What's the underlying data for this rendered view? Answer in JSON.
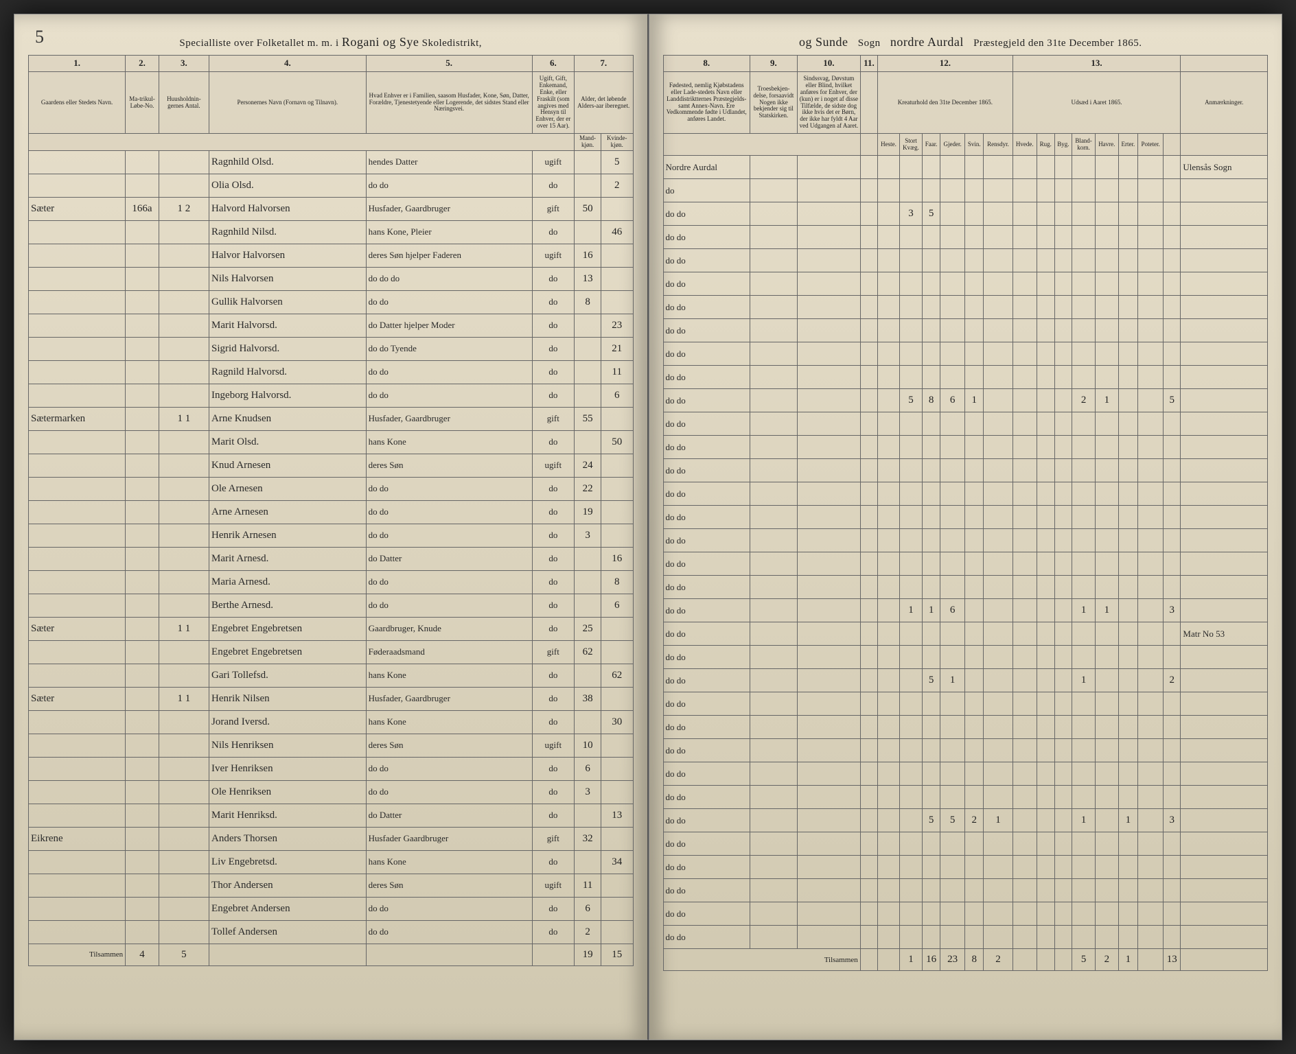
{
  "page_number_left": "5",
  "title_left": "Specialliste over Folketallet m. m. i",
  "title_district": "Rogani og Sye",
  "title_school": "Skoledistrikt,",
  "title_parish": "Sogn",
  "title_right_suffix": "Præstegjeld den 31te December 1865.",
  "column_numbers_left": [
    "1.",
    "2.",
    "3.",
    "4.",
    "5.",
    "6.",
    "7."
  ],
  "column_numbers_right": [
    "8.",
    "9.",
    "10.",
    "11.",
    "12.",
    "13."
  ],
  "col_headers_left": {
    "farm": "Gaardens eller Stedets Navn.",
    "matr": "Ma-trikul-Løbe-No.",
    "house": "Huusholdnin-gernes Antal.",
    "name": "Personernes Navn (Fornavn og Tilnavn).",
    "position": "Hvad Enhver er i Familien, saasom Husfader, Kone, Søn, Datter, Forældre, Tjenestetyende eller Logerende, det sidstes Stand eller Næringsvei.",
    "marital": "Ugift, Gift, Enkemand, Enke, eller Fraskilt (som angives med Hensyn til Enhver, der er over 15 Aar).",
    "age": "Alder, det løbende Alders-aar iberegnet.",
    "age_m": "Mand-kjøn.",
    "age_f": "Kvinde-kjøn."
  },
  "col_headers_right": {
    "birthplace": "Fødested, nemlig Kjøbstadens eller Lade-stedets Navn eller Landdistriktternes Præstegjelds- samt Annex-Navn. Ere Vedkommende fødte i Udlandet, anføres Landet.",
    "religion": "Troesbekjen-delse, forsaavidt Nogen ikke bekjender sig til Statskirken.",
    "infirm": "Sindssvag, Døvstum eller Blind, hvilket anføres for Enhver, der (kun) er i noget af disse Tilfælde, de sidste dog ikke hvis det er Børn, der ikke har fyldt 4 Aar ved Udgangen af Aaret.",
    "livestock": "Kreaturhold den 31te December 1865.",
    "livestock_cols": [
      "Heste.",
      "Stort Kvæg.",
      "Faar.",
      "Gjeder.",
      "Svin.",
      "Rensdyr."
    ],
    "seed": "Udsæd i Aaret 1865.",
    "seed_cols": [
      "Hvede.",
      "Rug.",
      "Byg.",
      "Bland-korn.",
      "Havre.",
      "Erter.",
      "Poteter."
    ],
    "remarks": "Anmærkninger."
  },
  "rows": [
    {
      "farm": "",
      "name": "Ragnhild Olsd.",
      "pos": "hendes Datter",
      "mar": "ugift",
      "m": "",
      "f": "5",
      "birth": "Nordre Aurdal",
      "remark": "Ulensås Sogn"
    },
    {
      "farm": "",
      "name": "Olia Olsd.",
      "pos": "do   do",
      "mar": "do",
      "m": "",
      "f": "2",
      "birth": "do"
    },
    {
      "farm": "Sæter",
      "matr": "166a",
      "hh": "1 2",
      "name": "Halvord Halvorsen",
      "pos": "Husfader, Gaardbruger",
      "mar": "gift",
      "m": "50",
      "f": "",
      "birth": "do   do",
      "live": [
        "",
        "3",
        "5",
        ""
      ]
    },
    {
      "farm": "",
      "name": "Ragnhild Nilsd.",
      "pos": "hans Kone, Pleier",
      "mar": "do",
      "m": "",
      "f": "46",
      "birth": "do   do"
    },
    {
      "farm": "",
      "name": "Halvor Halvorsen",
      "pos": "deres Søn hjelper Faderen",
      "mar": "ugift",
      "m": "16",
      "f": "",
      "birth": "do   do"
    },
    {
      "farm": "",
      "name": "Nils Halvorsen",
      "pos": "do   do   do",
      "mar": "do",
      "m": "13",
      "f": "",
      "birth": "do   do"
    },
    {
      "farm": "",
      "name": "Gullik Halvorsen",
      "pos": "do   do",
      "mar": "do",
      "m": "8",
      "f": "",
      "birth": "do   do"
    },
    {
      "farm": "",
      "name": "Marit Halvorsd.",
      "pos": "do Datter hjelper Moder",
      "mar": "do",
      "m": "",
      "f": "23",
      "birth": "do   do"
    },
    {
      "farm": "",
      "name": "Sigrid Halvorsd.",
      "pos": "do   do Tyende",
      "mar": "do",
      "m": "",
      "f": "21",
      "birth": "do   do"
    },
    {
      "farm": "",
      "name": "Ragnild Halvorsd.",
      "pos": "do   do",
      "mar": "do",
      "m": "",
      "f": "11",
      "birth": "do   do"
    },
    {
      "farm": "",
      "name": "Ingeborg Halvorsd.",
      "pos": "do   do",
      "mar": "do",
      "m": "",
      "f": "6",
      "birth": "do   do",
      "live": [
        "",
        "5",
        "8",
        "6",
        "1",
        "",
        "",
        "",
        "",
        "2",
        "1",
        "",
        "",
        "5"
      ]
    },
    {
      "farm": "Sætermarken",
      "hh": "1 1",
      "name": "Arne Knudsen",
      "pos": "Husfader, Gaardbruger",
      "mar": "gift",
      "m": "55",
      "f": "",
      "birth": "do   do"
    },
    {
      "farm": "",
      "name": "Marit Olsd.",
      "pos": "hans Kone",
      "mar": "do",
      "m": "",
      "f": "50",
      "birth": "do   do"
    },
    {
      "farm": "",
      "name": "Knud Arnesen",
      "pos": "deres Søn",
      "mar": "ugift",
      "m": "24",
      "f": "",
      "birth": "do   do"
    },
    {
      "farm": "",
      "name": "Ole Arnesen",
      "pos": "do   do",
      "mar": "do",
      "m": "22",
      "f": "",
      "birth": "do   do"
    },
    {
      "farm": "",
      "name": "Arne Arnesen",
      "pos": "do   do",
      "mar": "do",
      "m": "19",
      "f": "",
      "birth": "do   do"
    },
    {
      "farm": "",
      "name": "Henrik Arnesen",
      "pos": "do   do",
      "mar": "do",
      "m": "3",
      "f": "",
      "birth": "do   do"
    },
    {
      "farm": "",
      "name": "Marit Arnesd.",
      "pos": "do Datter",
      "mar": "do",
      "m": "",
      "f": "16",
      "birth": "do   do"
    },
    {
      "farm": "",
      "name": "Maria Arnesd.",
      "pos": "do   do",
      "mar": "do",
      "m": "",
      "f": "8",
      "birth": "do   do"
    },
    {
      "farm": "",
      "name": "Berthe Arnesd.",
      "pos": "do   do",
      "mar": "do",
      "m": "",
      "f": "6",
      "birth": "do   do",
      "live": [
        "",
        "1",
        "1",
        "6",
        "",
        "",
        "",
        "",
        "",
        "1",
        "1",
        "",
        "",
        "3"
      ]
    },
    {
      "farm": "Sæter",
      "hh": "1 1",
      "name": "Engebret Engebretsen",
      "pos": "Gaardbruger, Knude",
      "mar": "do",
      "m": "25",
      "f": "",
      "birth": "do   do",
      "remark": "Matr No 53"
    },
    {
      "farm": "",
      "name": "Engebret Engebretsen",
      "pos": "Føderaadsmand",
      "mar": "gift",
      "m": "62",
      "f": "",
      "birth": "do   do"
    },
    {
      "farm": "",
      "name": "Gari Tollefsd.",
      "pos": "hans Kone",
      "mar": "do",
      "m": "",
      "f": "62",
      "birth": "do   do",
      "live": [
        "",
        "",
        "5",
        "1",
        "",
        "",
        "",
        "",
        "",
        "1",
        "",
        "",
        "",
        "2"
      ]
    },
    {
      "farm": "Sæter",
      "hh": "1 1",
      "name": "Henrik Nilsen",
      "pos": "Husfader, Gaardbruger",
      "mar": "do",
      "m": "38",
      "f": "",
      "birth": "do   do"
    },
    {
      "farm": "",
      "name": "Jorand Iversd.",
      "pos": "hans Kone",
      "mar": "do",
      "m": "",
      "f": "30",
      "birth": "do   do"
    },
    {
      "farm": "",
      "name": "Nils Henriksen",
      "pos": "deres Søn",
      "mar": "ugift",
      "m": "10",
      "f": "",
      "birth": "do   do"
    },
    {
      "farm": "",
      "name": "Iver Henriksen",
      "pos": "do   do",
      "mar": "do",
      "m": "6",
      "f": "",
      "birth": "do   do"
    },
    {
      "farm": "",
      "name": "Ole Henriksen",
      "pos": "do   do",
      "mar": "do",
      "m": "3",
      "f": "",
      "birth": "do   do"
    },
    {
      "farm": "",
      "name": "Marit Henriksd.",
      "pos": "do Datter",
      "mar": "do",
      "m": "",
      "f": "13",
      "birth": "do   do",
      "live": [
        "",
        "",
        "5",
        "5",
        "2",
        "1",
        "",
        "",
        "",
        "1",
        "",
        "1",
        "",
        "3"
      ]
    },
    {
      "farm": "Eikrene",
      "hh": "",
      "name": "Anders Thorsen",
      "pos": "Husfader Gaardbruger",
      "mar": "gift",
      "m": "32",
      "f": "",
      "birth": "do   do"
    },
    {
      "farm": "",
      "name": "Liv Engebretsd.",
      "pos": "hans Kone",
      "mar": "do",
      "m": "",
      "f": "34",
      "birth": "do   do"
    },
    {
      "farm": "",
      "name": "Thor Andersen",
      "pos": "deres Søn",
      "mar": "ugift",
      "m": "11",
      "f": "",
      "birth": "do   do"
    },
    {
      "farm": "",
      "name": "Engebret Andersen",
      "pos": "do   do",
      "mar": "do",
      "m": "6",
      "f": "",
      "birth": "do   do"
    },
    {
      "farm": "",
      "name": "Tollef Andersen",
      "pos": "do   do",
      "mar": "do",
      "m": "2",
      "f": "",
      "birth": "do   do"
    }
  ],
  "tilsammen_label": "Tilsammen",
  "tilsammen_left": [
    "4",
    "5",
    "",
    "",
    "",
    "19",
    "15"
  ],
  "tilsammen_right": [
    "",
    "1",
    "16",
    "23",
    "8",
    "2",
    "",
    "",
    "",
    "5",
    "2",
    "1",
    "",
    "13"
  ]
}
